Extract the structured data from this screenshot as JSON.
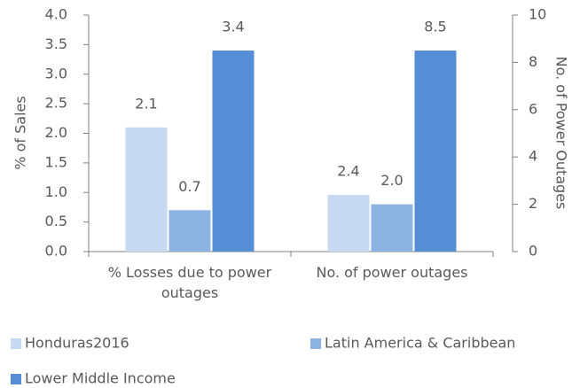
{
  "chart_data": {
    "type": "bar",
    "categories": [
      "% Losses due to power outages",
      "No. of power outages"
    ],
    "category_axes": [
      "y",
      "y2"
    ],
    "series": [
      {
        "name": "Honduras2016",
        "color": "#c6d9f1",
        "values": [
          2.1,
          2.4
        ],
        "value_labels": [
          "2.1",
          "2.4"
        ]
      },
      {
        "name": "Latin America & Caribbean",
        "color": "#8db3e2",
        "values": [
          0.7,
          2.0
        ],
        "value_labels": [
          "0.7",
          "2.0"
        ]
      },
      {
        "name": "Lower Middle Income",
        "color": "#558ed5",
        "values": [
          3.4,
          8.5
        ],
        "value_labels": [
          "3.4",
          "8.5"
        ]
      }
    ],
    "ylabel": "% of Sales",
    "y2label": "No. of Power Outages",
    "ylim": [
      0,
      4
    ],
    "yticks": [
      {
        "value": 0,
        "label": "0.0"
      },
      {
        "value": 0.5,
        "label": "0.5"
      },
      {
        "value": 1,
        "label": "1.0"
      },
      {
        "value": 1.5,
        "label": "1.5"
      },
      {
        "value": 2,
        "label": "2.0"
      },
      {
        "value": 2.5,
        "label": "2.5"
      },
      {
        "value": 3,
        "label": "3.0"
      },
      {
        "value": 3.5,
        "label": "3.5"
      },
      {
        "value": 4,
        "label": "4.0"
      }
    ],
    "y2lim": [
      0,
      10
    ],
    "y2ticks": [
      0,
      2,
      4,
      6,
      8,
      10
    ],
    "grid": false,
    "legend": "bottom"
  }
}
